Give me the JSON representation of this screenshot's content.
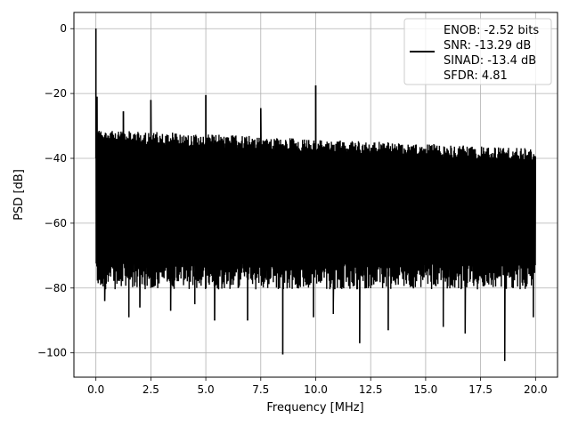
{
  "chart_data": {
    "type": "line",
    "title": "",
    "xlabel": "Frequency [MHz]",
    "ylabel": "PSD [dB]",
    "xlim": [
      -1.0,
      21.0
    ],
    "ylim": [
      -107.5,
      5.0
    ],
    "xticks": [
      0.0,
      2.5,
      5.0,
      7.5,
      10.0,
      12.5,
      15.0,
      17.5,
      20.0
    ],
    "xtick_labels": [
      "0.0",
      "2.5",
      "5.0",
      "7.5",
      "10.0",
      "12.5",
      "15.0",
      "17.5",
      "20.0"
    ],
    "yticks": [
      0,
      -20,
      -40,
      -60,
      -80,
      -100
    ],
    "ytick_labels": [
      "0",
      "−20",
      "−40",
      "−60",
      "−80",
      "−100"
    ],
    "grid": true,
    "legend_position": "top-right",
    "series": [
      {
        "name": "ENOB: -2.52 bits\nSNR: -13.29 dB\nSINAD: -13.4 dB\nSFDR: 4.81",
        "color": "#000000",
        "description_values": {
          "noise_floor_top_start": -31,
          "noise_floor_top_end": -37,
          "noise_floor_bottom_typical": -78,
          "x_start": 0.0,
          "x_end": 20.0
        },
        "peaks": [
          {
            "x": 0.0,
            "y": 0.0
          },
          {
            "x": 0.05,
            "y": -21
          },
          {
            "x": 1.25,
            "y": -25.5
          },
          {
            "x": 2.5,
            "y": -22
          },
          {
            "x": 5.0,
            "y": -20.5
          },
          {
            "x": 7.5,
            "y": -24.5
          },
          {
            "x": 10.0,
            "y": -17.5
          }
        ],
        "dips": [
          {
            "x": 0.4,
            "y": -84
          },
          {
            "x": 1.5,
            "y": -89
          },
          {
            "x": 2.0,
            "y": -86
          },
          {
            "x": 3.4,
            "y": -87
          },
          {
            "x": 4.5,
            "y": -85
          },
          {
            "x": 5.4,
            "y": -90
          },
          {
            "x": 6.9,
            "y": -90
          },
          {
            "x": 8.5,
            "y": -100.5
          },
          {
            "x": 9.9,
            "y": -89
          },
          {
            "x": 10.8,
            "y": -88
          },
          {
            "x": 12.0,
            "y": -97
          },
          {
            "x": 13.3,
            "y": -93
          },
          {
            "x": 15.8,
            "y": -92
          },
          {
            "x": 16.8,
            "y": -94
          },
          {
            "x": 18.6,
            "y": -102.5
          },
          {
            "x": 19.9,
            "y": -89
          }
        ]
      }
    ]
  }
}
